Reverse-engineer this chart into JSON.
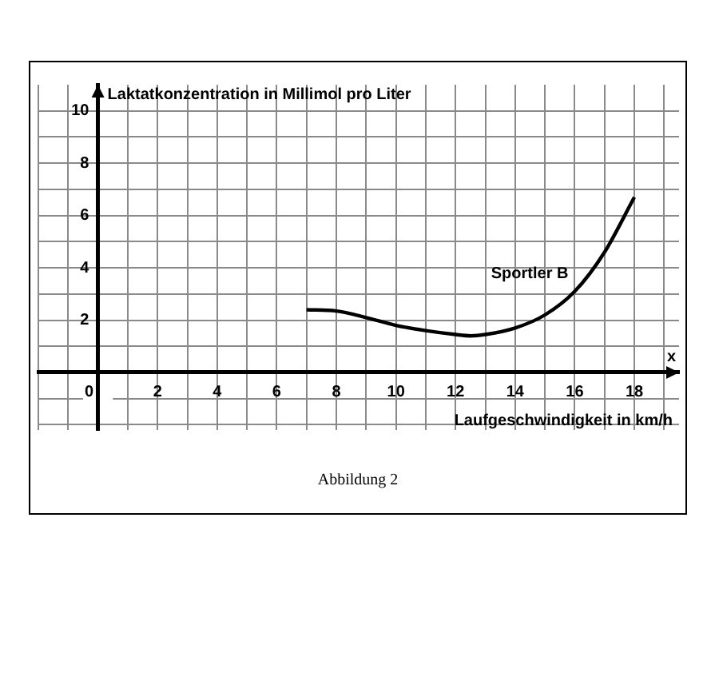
{
  "chart_data": {
    "type": "line",
    "ylabel": "Laktatkonzentration in Millimol pro Liter",
    "xlabel": "Laufgeschwindigkeit in km/h",
    "annotations": [
      "x",
      "Abbildung 2"
    ],
    "xlim": [
      -2,
      19.5
    ],
    "ylim": [
      -2.2,
      11
    ],
    "xticks": [
      {
        "value": -2,
        "label": null
      },
      {
        "value": -1,
        "label": null
      },
      0,
      {
        "value": 1,
        "label": null
      },
      2,
      {
        "value": 3,
        "label": null
      },
      4,
      {
        "value": 5,
        "label": null
      },
      6,
      {
        "value": 7,
        "label": null
      },
      8,
      {
        "value": 9,
        "label": null
      },
      10,
      {
        "value": 11,
        "label": null
      },
      12,
      {
        "value": 13,
        "label": null
      },
      14,
      {
        "value": 15,
        "label": null
      },
      16,
      {
        "value": 17,
        "label": null
      },
      18,
      {
        "value": 19,
        "label": null
      }
    ],
    "yticks": [
      {
        "value": -2,
        "label": null
      },
      {
        "value": -1,
        "label": null
      },
      {
        "value": 0,
        "label": null
      },
      {
        "value": 1,
        "label": null
      },
      2,
      {
        "value": 3,
        "label": null
      },
      4,
      {
        "value": 5,
        "label": null
      },
      6,
      {
        "value": 7,
        "label": null
      },
      8,
      {
        "value": 9,
        "label": null
      },
      10
    ],
    "grid": true,
    "legend": false,
    "marker": "none",
    "line_style": "solid",
    "series": [
      {
        "name": "Sportler B",
        "color": "#000000",
        "x": [
          7,
          8,
          9,
          10,
          11,
          12,
          12.5,
          13,
          14,
          15,
          16,
          17,
          18
        ],
        "values": [
          2.4,
          2.35,
          2.1,
          1.8,
          1.6,
          1.45,
          1.4,
          1.45,
          1.7,
          2.2,
          3.1,
          4.6,
          6.7
        ]
      }
    ]
  }
}
